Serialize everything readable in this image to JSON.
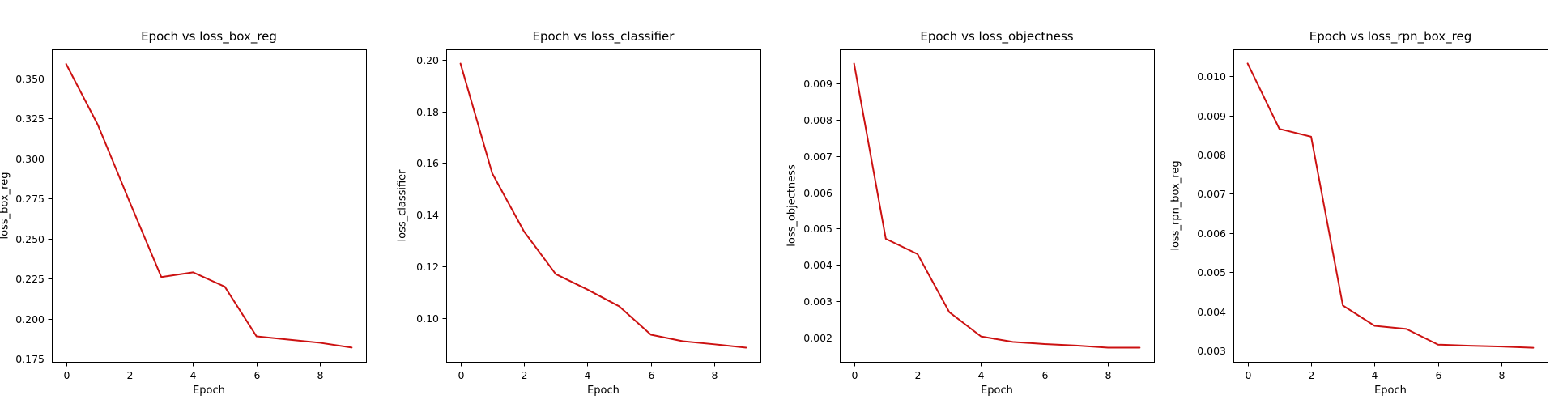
{
  "colors": {
    "line": "#cc1111",
    "background": "#ffffff"
  },
  "chart_data": [
    {
      "type": "line",
      "title": "Epoch vs loss_box_reg",
      "xlabel": "Epoch",
      "ylabel": "loss_box_reg",
      "x": [
        0,
        1,
        2,
        3,
        4,
        5,
        6,
        7,
        8,
        9
      ],
      "series": [
        {
          "values": [
            0.359,
            0.321,
            0.273,
            0.226,
            0.229,
            0.22,
            0.189,
            0.187,
            0.185,
            0.182
          ]
        }
      ],
      "xlim": [
        -0.45,
        9.45
      ],
      "ylim": [
        0.1731,
        0.3681
      ],
      "xticks": [
        0,
        2,
        4,
        6,
        8
      ],
      "xtick_labels": [
        "0",
        "2",
        "4",
        "6",
        "8"
      ],
      "yticks": [
        0.175,
        0.2,
        0.225,
        0.25,
        0.275,
        0.3,
        0.325,
        0.35
      ],
      "ytick_labels": [
        "0.175",
        "0.200",
        "0.225",
        "0.250",
        "0.275",
        "0.300",
        "0.325",
        "0.350"
      ],
      "grid": false,
      "legend": "none"
    },
    {
      "type": "line",
      "title": "Epoch vs loss_classifier",
      "xlabel": "Epoch",
      "ylabel": "loss_classifier",
      "x": [
        0,
        1,
        2,
        3,
        4,
        5,
        6,
        7,
        8,
        9
      ],
      "series": [
        {
          "values": [
            0.1985,
            0.156,
            0.1335,
            0.117,
            0.111,
            0.1045,
            0.0935,
            0.091,
            0.0898,
            0.0885
          ]
        }
      ],
      "xlim": [
        -0.45,
        9.45
      ],
      "ylim": [
        0.083,
        0.204
      ],
      "xticks": [
        0,
        2,
        4,
        6,
        8
      ],
      "xtick_labels": [
        "0",
        "2",
        "4",
        "6",
        "8"
      ],
      "yticks": [
        0.1,
        0.12,
        0.14,
        0.16,
        0.18,
        0.2
      ],
      "ytick_labels": [
        "0.10",
        "0.12",
        "0.14",
        "0.16",
        "0.18",
        "0.20"
      ],
      "grid": false,
      "legend": "none"
    },
    {
      "type": "line",
      "title": "Epoch vs loss_objectness",
      "xlabel": "Epoch",
      "ylabel": "loss_objectness",
      "x": [
        0,
        1,
        2,
        3,
        4,
        5,
        6,
        7,
        8,
        9
      ],
      "series": [
        {
          "values": [
            0.00955,
            0.00472,
            0.0043,
            0.0027,
            0.00203,
            0.00188,
            0.00182,
            0.00178,
            0.00172,
            0.00172
          ]
        }
      ],
      "xlim": [
        -0.45,
        9.45
      ],
      "ylim": [
        0.00133,
        0.00994
      ],
      "xticks": [
        0,
        2,
        4,
        6,
        8
      ],
      "xtick_labels": [
        "0",
        "2",
        "4",
        "6",
        "8"
      ],
      "yticks": [
        0.002,
        0.003,
        0.004,
        0.005,
        0.006,
        0.007,
        0.008,
        0.009
      ],
      "ytick_labels": [
        "0.002",
        "0.003",
        "0.004",
        "0.005",
        "0.006",
        "0.007",
        "0.008",
        "0.009"
      ],
      "grid": false,
      "legend": "none"
    },
    {
      "type": "line",
      "title": "Epoch vs loss_rpn_box_reg",
      "xlabel": "Epoch",
      "ylabel": "loss_rpn_box_reg",
      "x": [
        0,
        1,
        2,
        3,
        4,
        5,
        6,
        7,
        8,
        9
      ],
      "series": [
        {
          "values": [
            0.01033,
            0.00866,
            0.00846,
            0.00415,
            0.00363,
            0.00355,
            0.00315,
            0.00312,
            0.0031,
            0.00307
          ]
        }
      ],
      "xlim": [
        -0.45,
        9.45
      ],
      "ylim": [
        0.00271,
        0.01069
      ],
      "xticks": [
        0,
        2,
        4,
        6,
        8
      ],
      "xtick_labels": [
        "0",
        "2",
        "4",
        "6",
        "8"
      ],
      "yticks": [
        0.003,
        0.004,
        0.005,
        0.006,
        0.007,
        0.008,
        0.009,
        0.01
      ],
      "ytick_labels": [
        "0.003",
        "0.004",
        "0.005",
        "0.006",
        "0.007",
        "0.008",
        "0.009",
        "0.010"
      ],
      "grid": false,
      "legend": "none"
    }
  ]
}
